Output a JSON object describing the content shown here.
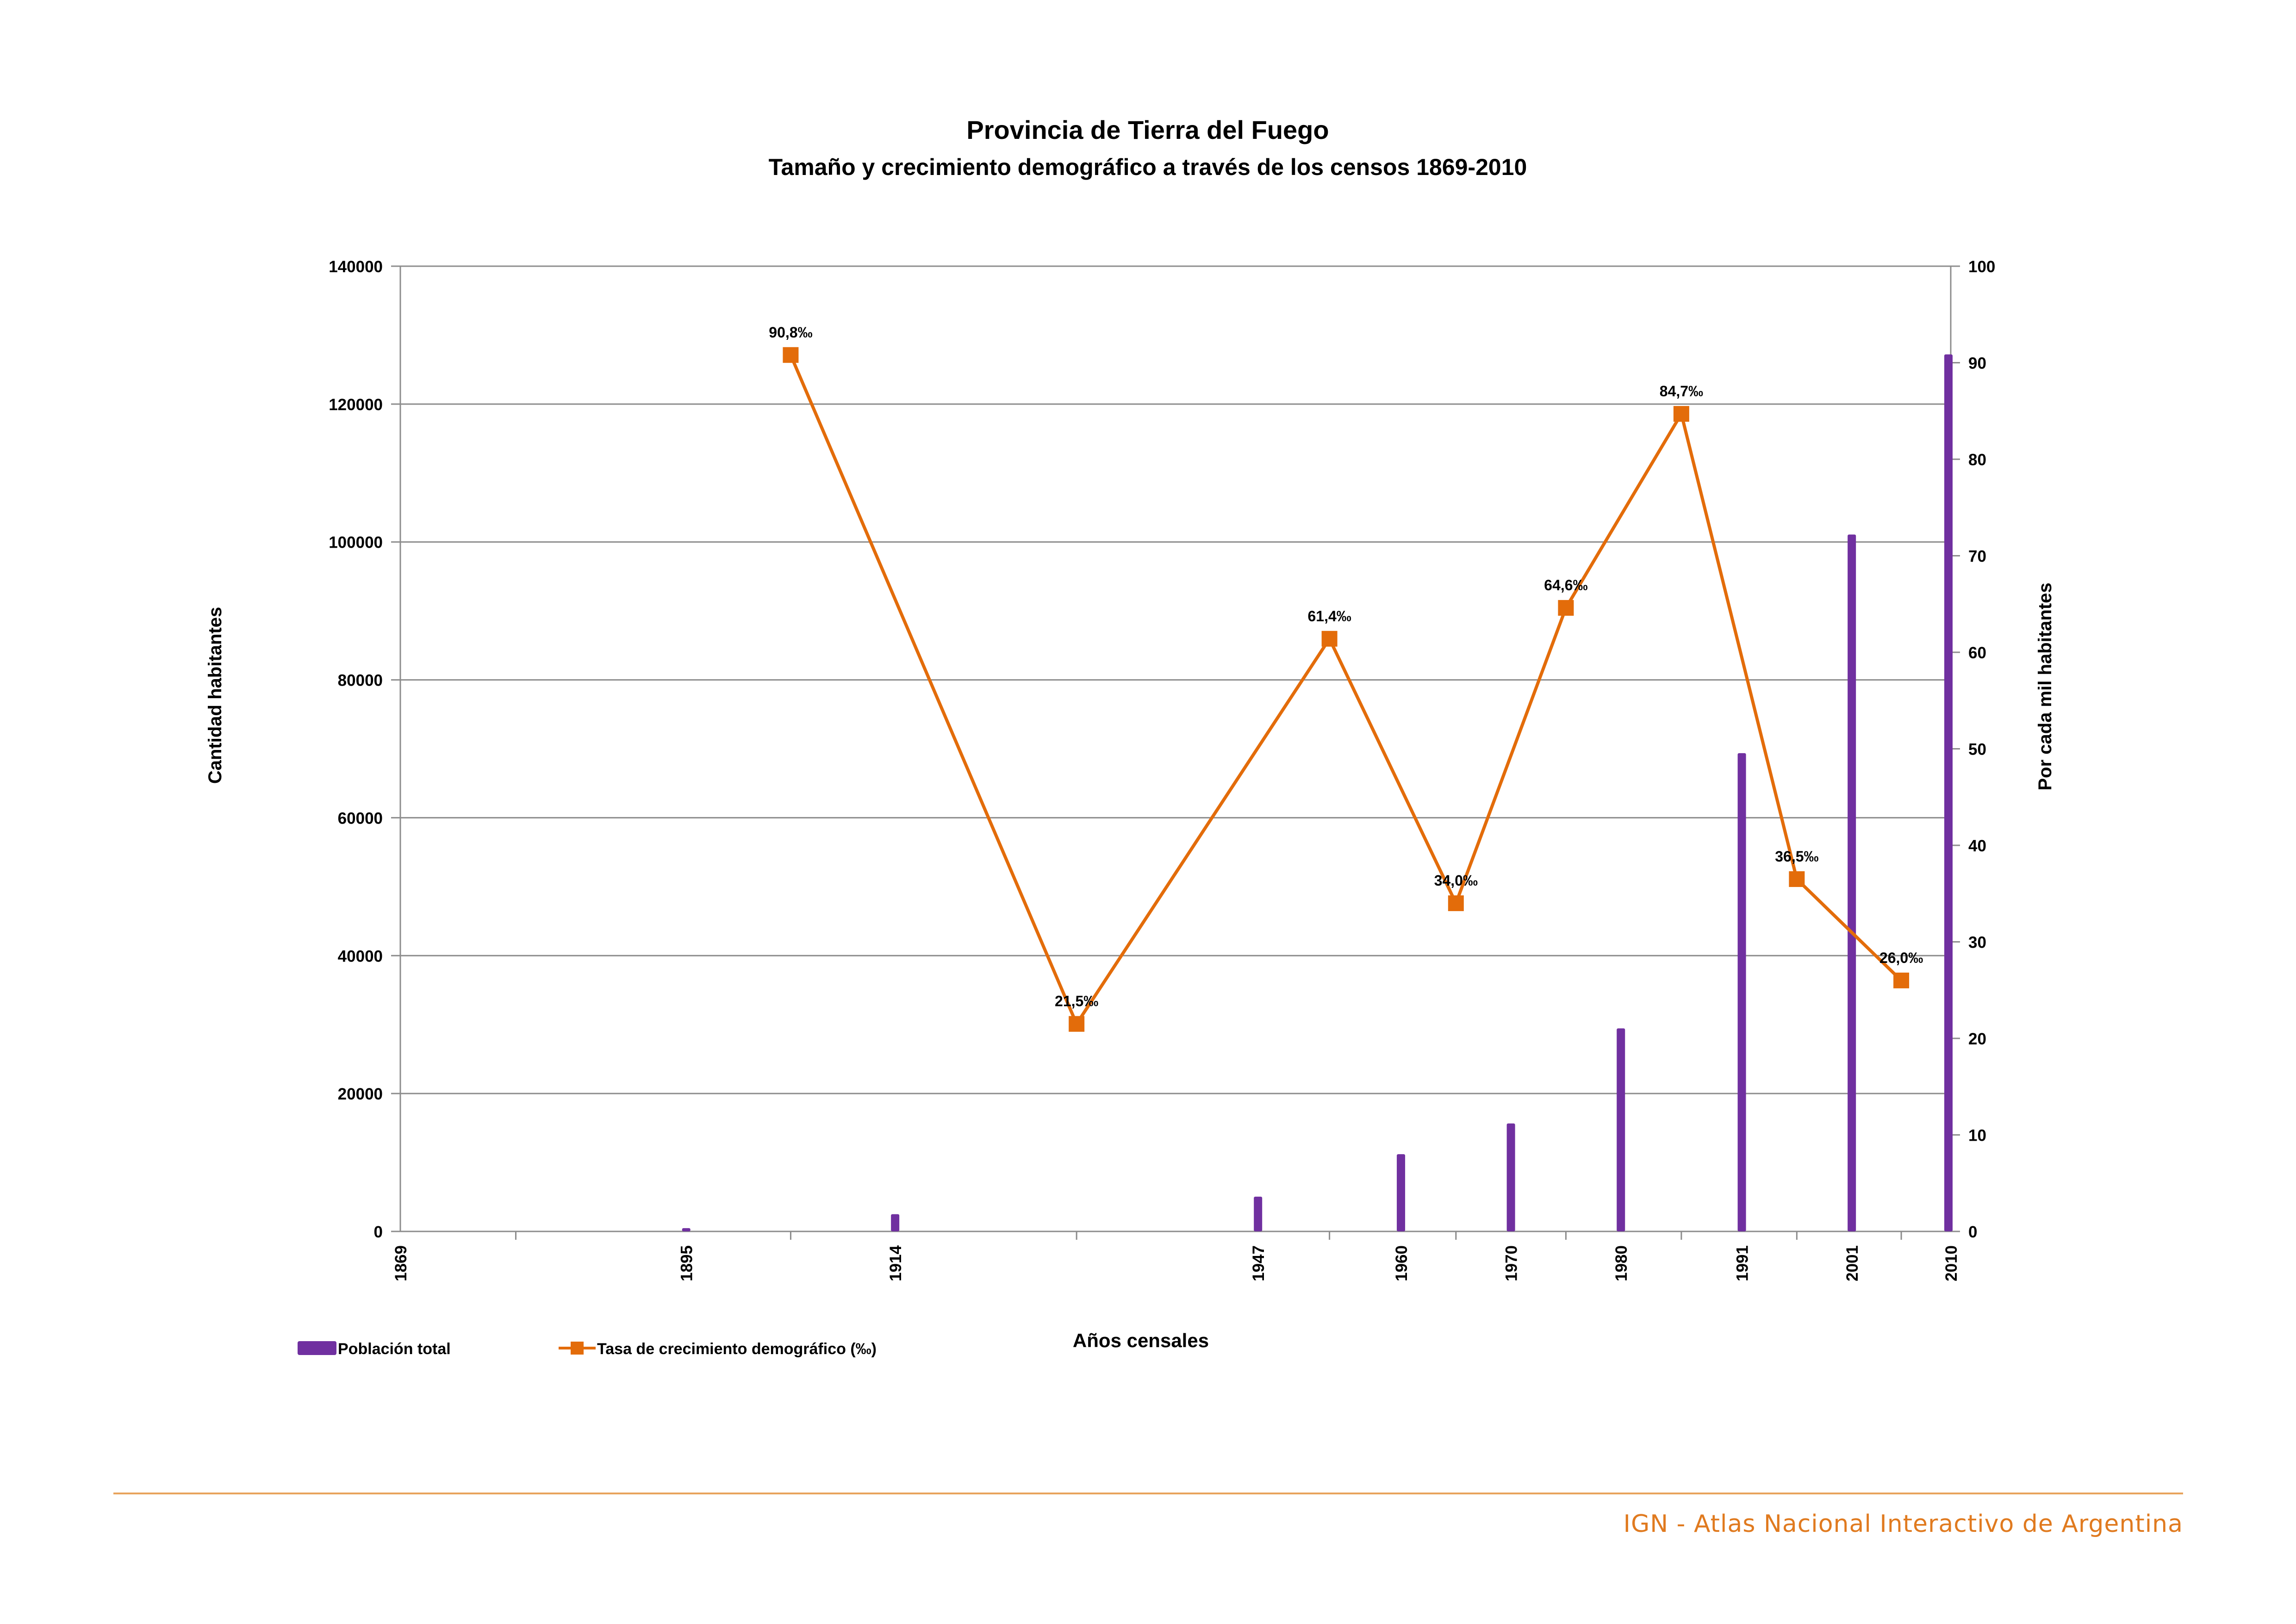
{
  "chart_data": {
    "type": "bar+line",
    "title": "Provincia de Tierra del Fuego",
    "subtitle": "Tamaño y crecimiento demográfico a través de los censos 1869-2010",
    "xlabel": "Años censales",
    "ylabel_left": "Cantidad habitantes",
    "ylabel_right": "Por cada mil habitantes",
    "ylim_left": [
      0,
      140000
    ],
    "ylim_right": [
      0,
      100
    ],
    "xlim": [
      1869,
      2010
    ],
    "yticks_left": [
      "0",
      "20000",
      "40000",
      "60000",
      "80000",
      "100000",
      "120000",
      "140000"
    ],
    "yticks_right": [
      "0",
      "10",
      "20",
      "30",
      "40",
      "50",
      "60",
      "70",
      "80",
      "90",
      "100"
    ],
    "xticks": [
      "1869",
      "1895",
      "1914",
      "1947",
      "1960",
      "1970",
      "1980",
      "1991",
      "2001",
      "2010"
    ],
    "grid": true,
    "legend_position": "bottom-left",
    "series": [
      {
        "name": "Población total",
        "type": "bar",
        "axis": "left",
        "color": "#7030A0",
        "x": [
          1895,
          1914,
          1947,
          1960,
          1970,
          1980,
          1991,
          2001,
          2010
        ],
        "values": [
          477,
          2504,
          5045,
          11209,
          15658,
          29451,
          69369,
          101079,
          127205
        ]
      },
      {
        "name": "Tasa de crecimiento demográfico (‰)",
        "type": "line",
        "axis": "right",
        "color": "#E36C0A",
        "x": [
          1904.5,
          1930.5,
          1953.5,
          1965,
          1975,
          1985.5,
          1996,
          2005.5
        ],
        "values": [
          90.8,
          21.5,
          61.4,
          34.0,
          64.6,
          84.7,
          36.5,
          26.0
        ],
        "labels": [
          "90,8‰",
          "21,5‰",
          "61,4‰",
          "34,0‰",
          "64,6‰",
          "84,7‰",
          "36,5‰",
          "26,0‰"
        ]
      }
    ]
  },
  "footer": {
    "text": "IGN - Atlas Nacional Interactivo de Argentina"
  }
}
